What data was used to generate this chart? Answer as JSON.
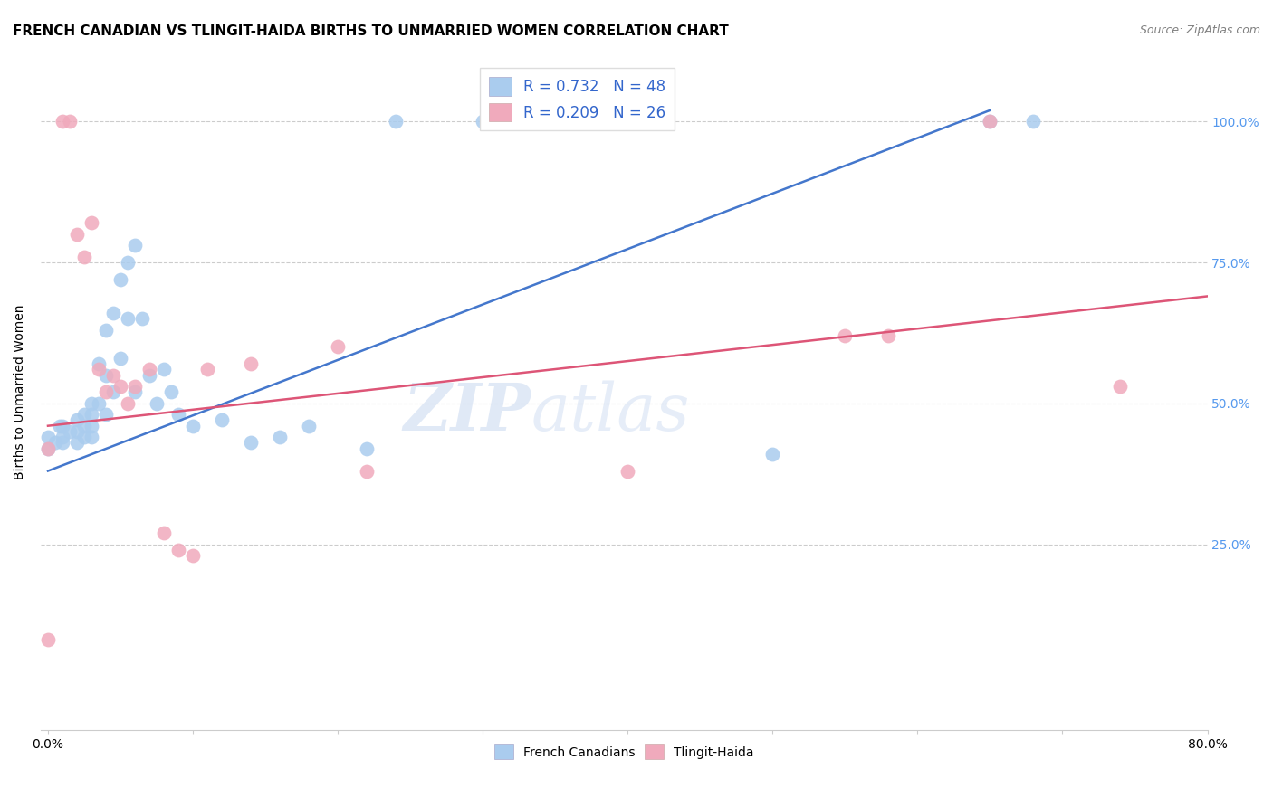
{
  "title": "FRENCH CANADIAN VS TLINGIT-HAIDA BIRTHS TO UNMARRIED WOMEN CORRELATION CHART",
  "source": "Source: ZipAtlas.com",
  "ylabel": "Births to Unmarried Women",
  "ytick_labels": [
    "25.0%",
    "50.0%",
    "75.0%",
    "100.0%"
  ],
  "ytick_values": [
    0.25,
    0.5,
    0.75,
    1.0
  ],
  "xlim": [
    -0.005,
    0.8
  ],
  "ylim": [
    -0.08,
    1.12
  ],
  "watermark": "ZIPatlas",
  "french_color": "#aaccee",
  "french_edge_color": "#aaccee",
  "tlingit_color": "#f0aabc",
  "tlingit_edge_color": "#f0aabc",
  "french_line_color": "#4477cc",
  "tlingit_line_color": "#dd5577",
  "french_x": [
    0.0,
    0.0,
    0.005,
    0.008,
    0.01,
    0.01,
    0.01,
    0.015,
    0.02,
    0.02,
    0.02,
    0.025,
    0.025,
    0.025,
    0.03,
    0.03,
    0.03,
    0.03,
    0.035,
    0.035,
    0.04,
    0.04,
    0.04,
    0.045,
    0.045,
    0.05,
    0.05,
    0.055,
    0.055,
    0.06,
    0.06,
    0.065,
    0.07,
    0.075,
    0.08,
    0.085,
    0.09,
    0.1,
    0.12,
    0.14,
    0.16,
    0.18,
    0.22,
    0.24,
    0.3,
    0.5,
    0.65,
    0.68
  ],
  "french_y": [
    0.42,
    0.44,
    0.43,
    0.46,
    0.44,
    0.46,
    0.43,
    0.45,
    0.47,
    0.45,
    0.43,
    0.48,
    0.46,
    0.44,
    0.5,
    0.48,
    0.46,
    0.44,
    0.57,
    0.5,
    0.63,
    0.55,
    0.48,
    0.66,
    0.52,
    0.72,
    0.58,
    0.75,
    0.65,
    0.78,
    0.52,
    0.65,
    0.55,
    0.5,
    0.56,
    0.52,
    0.48,
    0.46,
    0.47,
    0.43,
    0.44,
    0.46,
    0.42,
    1.0,
    1.0,
    0.41,
    1.0,
    1.0
  ],
  "tlingit_x": [
    0.0,
    0.0,
    0.01,
    0.015,
    0.02,
    0.025,
    0.03,
    0.035,
    0.04,
    0.045,
    0.05,
    0.055,
    0.06,
    0.07,
    0.08,
    0.09,
    0.1,
    0.11,
    0.14,
    0.2,
    0.22,
    0.4,
    0.55,
    0.58,
    0.65,
    0.74
  ],
  "tlingit_y": [
    0.08,
    0.42,
    1.0,
    1.0,
    0.8,
    0.76,
    0.82,
    0.56,
    0.52,
    0.55,
    0.53,
    0.5,
    0.53,
    0.56,
    0.27,
    0.24,
    0.23,
    0.56,
    0.57,
    0.6,
    0.38,
    0.38,
    0.62,
    0.62,
    1.0,
    0.53
  ],
  "french_trend_x": [
    0.0,
    0.65
  ],
  "french_trend_y": [
    0.38,
    1.02
  ],
  "tlingit_trend_x": [
    0.0,
    0.8
  ],
  "tlingit_trend_y": [
    0.46,
    0.69
  ],
  "grid_color": "#cccccc",
  "grid_style": "--",
  "spine_color": "#cccccc",
  "right_tick_color": "#5599ee",
  "bottom_label_color": "#000000",
  "title_fontsize": 11,
  "axis_fontsize": 10,
  "legend_fontsize": 12,
  "scatter_size": 130
}
